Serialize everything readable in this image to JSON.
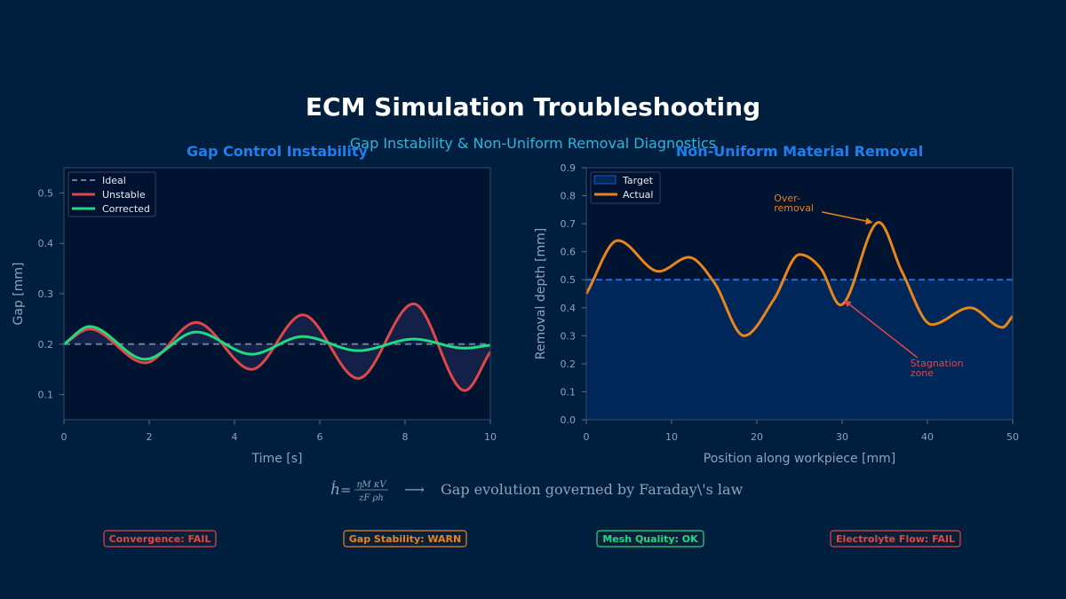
{
  "page": {
    "title": "ECM Simulation Troubleshooting",
    "subtitle": "Gap Instability & Non-Uniform Removal Diagnostics"
  },
  "chart_data": [
    {
      "type": "line",
      "title": "Gap Control Instability",
      "xlabel": "Time [s]",
      "ylabel": "Gap [mm]",
      "xlim": [
        0,
        10
      ],
      "ylim": [
        0.05,
        0.55
      ],
      "xticks": [
        "0",
        "2",
        "4",
        "6",
        "8",
        "10"
      ],
      "xtick_values": [
        0,
        2,
        4,
        6,
        8,
        10
      ],
      "yticks": [
        "0.1",
        "0.2",
        "0.3",
        "0.4",
        "0.5"
      ],
      "ytick_values": [
        0.1,
        0.2,
        0.3,
        0.4,
        0.5
      ],
      "legend": "top-left",
      "series": [
        {
          "name": "Ideal",
          "color": "#6b7f99",
          "style": "dashed",
          "x": [
            0,
            10
          ],
          "y": [
            0.2,
            0.2
          ]
        },
        {
          "name": "Unstable",
          "color": "#e04848",
          "style": "solid",
          "x": [
            0,
            0.6,
            1.9,
            3.1,
            4.4,
            5.6,
            6.9,
            8.2,
            9.4,
            10
          ],
          "y": [
            0.2,
            0.23,
            0.163,
            0.243,
            0.15,
            0.258,
            0.132,
            0.28,
            0.108,
            0.185
          ]
        },
        {
          "name": "Corrected",
          "color": "#1edc82",
          "style": "solid",
          "x": [
            0,
            0.6,
            1.9,
            3.1,
            4.4,
            5.6,
            6.9,
            8.2,
            9.4,
            10
          ],
          "y": [
            0.2,
            0.235,
            0.17,
            0.224,
            0.18,
            0.215,
            0.187,
            0.21,
            0.192,
            0.198
          ]
        }
      ]
    },
    {
      "type": "line",
      "title": "Non-Uniform Material Removal",
      "xlabel": "Position along workpiece [mm]",
      "ylabel": "Removal depth [mm]",
      "xlim": [
        0,
        50
      ],
      "ylim": [
        0,
        0.9
      ],
      "xticks": [
        "0",
        "10",
        "20",
        "30",
        "40",
        "50"
      ],
      "xtick_values": [
        0,
        10,
        20,
        30,
        40,
        50
      ],
      "yticks": [
        "0.0",
        "0.1",
        "0.2",
        "0.3",
        "0.4",
        "0.5",
        "0.6",
        "0.7",
        "0.8",
        "0.9"
      ],
      "ytick_values": [
        0,
        0.1,
        0.2,
        0.3,
        0.4,
        0.5,
        0.6,
        0.7,
        0.8,
        0.9
      ],
      "legend": "top-left",
      "series": [
        {
          "name": "Target",
          "color": "#1f6fe0",
          "fill": "#00275a",
          "style": "dashed-filled",
          "x": [
            0,
            50
          ],
          "y": [
            0.5,
            0.5
          ]
        },
        {
          "name": "Actual",
          "color": "#e8861a",
          "style": "solid",
          "x": [
            0,
            3.7,
            8.5,
            12,
            15,
            18.5,
            22,
            25,
            27.5,
            29.8,
            34.3,
            37,
            40.5,
            45,
            48.8,
            50
          ],
          "y": [
            0.45,
            0.64,
            0.53,
            0.58,
            0.49,
            0.3,
            0.43,
            0.59,
            0.54,
            0.41,
            0.705,
            0.53,
            0.34,
            0.4,
            0.33,
            0.37
          ]
        }
      ],
      "annotations": [
        {
          "text": [
            "Over-",
            "removal"
          ],
          "color": "#e8861a",
          "text_at": [
            22,
            0.78
          ],
          "point_at": [
            33.5,
            0.705
          ]
        },
        {
          "text": [
            "Stagnation",
            "zone"
          ],
          "color": "#e04848",
          "text_at": [
            38,
            0.19
          ],
          "point_at": [
            30.3,
            0.425
          ]
        }
      ]
    }
  ],
  "formula": {
    "lhs": "ḣ",
    "eq": "=",
    "num": "ηM κV",
    "den": "zF ρh",
    "arrow": "⟶",
    "description": "Gap evolution governed by Faraday\\'s law"
  },
  "badges": [
    {
      "text": "Convergence: FAIL",
      "color": "#e04848"
    },
    {
      "text": "Gap Stability: WARN",
      "color": "#e8861a"
    },
    {
      "text": "Mesh Quality: OK",
      "color": "#1edc82"
    },
    {
      "text": "Electrolyte Flow: FAIL",
      "color": "#e04848"
    }
  ]
}
